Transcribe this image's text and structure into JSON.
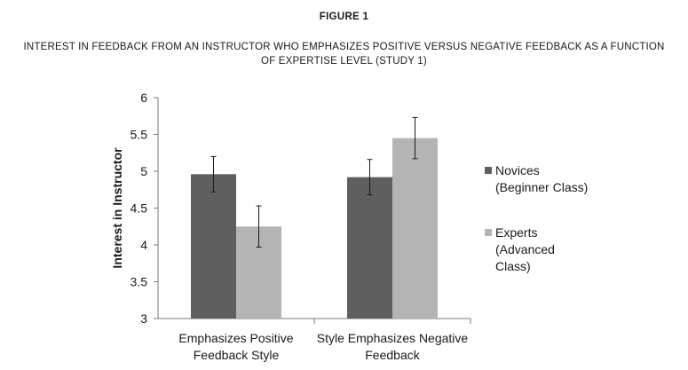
{
  "figure": {
    "label": "FIGURE 1",
    "title_line1": "INTEREST IN FEEDBACK FROM AN INSTRUCTOR WHO EMPHASIZES POSITIVE VERSUS NEGATIVE FEEDBACK AS A FUNCTION",
    "title_line2": "OF EXPERTISE LEVEL (STUDY 1)"
  },
  "chart_data": {
    "type": "bar",
    "ylabel": "Interest in Instructor",
    "xlabel": "",
    "ylim": [
      3,
      6
    ],
    "yticks": [
      "3",
      "3.5",
      "4",
      "4.5",
      "5",
      "5.5",
      "6"
    ],
    "grid": false,
    "legend_position": "right",
    "categories": [
      [
        "Emphasizes Positive",
        "Feedback Style"
      ],
      [
        "Style Emphasizes Negative",
        "Feedback"
      ]
    ],
    "series": [
      {
        "name": [
          "Novices",
          "(Beginner Class)"
        ],
        "color": "#5f5f5f",
        "values": [
          4.96,
          4.92
        ],
        "error": [
          0.24,
          0.24
        ]
      },
      {
        "name": [
          "Experts",
          "(Advanced",
          "Class)"
        ],
        "color": "#b4b4b4",
        "values": [
          4.25,
          5.45
        ],
        "error": [
          0.28,
          0.28
        ]
      }
    ]
  }
}
